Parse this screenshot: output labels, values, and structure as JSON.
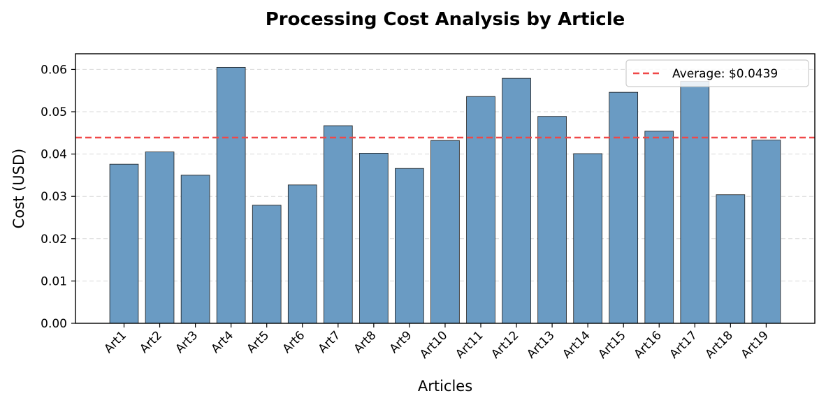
{
  "chart_data": {
    "type": "bar",
    "title": "Processing Cost Analysis by Article",
    "xlabel": "Articles",
    "ylabel": "Cost (USD)",
    "categories": [
      "Art1",
      "Art2",
      "Art3",
      "Art4",
      "Art5",
      "Art6",
      "Art7",
      "Art8",
      "Art9",
      "Art10",
      "Art11",
      "Art12",
      "Art13",
      "Art14",
      "Art15",
      "Art16",
      "Art17",
      "Art18",
      "Art19"
    ],
    "values": [
      0.0376,
      0.0405,
      0.035,
      0.0605,
      0.0279,
      0.0327,
      0.0467,
      0.0402,
      0.0366,
      0.0432,
      0.0536,
      0.0579,
      0.0489,
      0.0401,
      0.0546,
      0.0454,
      0.0572,
      0.0304,
      0.0433
    ],
    "ylim": [
      0,
      0.0637
    ],
    "yticks": [
      0.0,
      0.01,
      0.02,
      0.03,
      0.04,
      0.05,
      0.06
    ],
    "ytick_labels": [
      "0.00",
      "0.01",
      "0.02",
      "0.03",
      "0.04",
      "0.05",
      "0.06"
    ],
    "grid": "y-dashed",
    "reference_line": {
      "value": 0.0439,
      "label": "Average: $0.0439",
      "style": "dashed"
    },
    "legend_position": "top-right",
    "colors": {
      "bar": "#6a9bc3",
      "bar_edge": "#1a1a1a",
      "average_line": "#f04848",
      "grid": "#d9d9d9"
    }
  }
}
